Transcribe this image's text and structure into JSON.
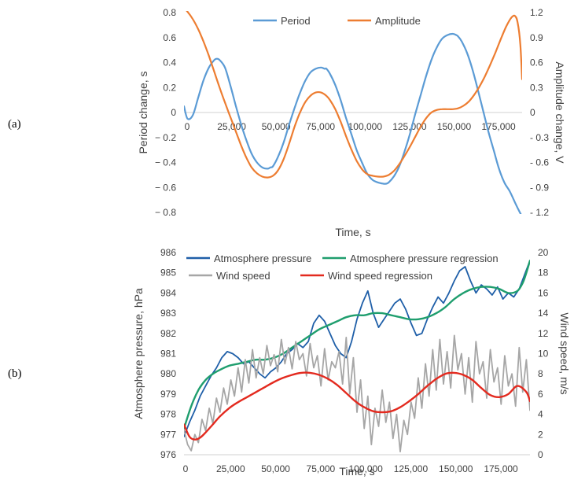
{
  "panels": {
    "a": "(a)",
    "b": "(b)"
  },
  "chart_data": [
    {
      "type": "line",
      "panel": "(a)",
      "xlabel": "Time, s",
      "ylabel_left": "Period change, s",
      "ylabel_right": "Amplitude change, V",
      "xlim": [
        0,
        190000
      ],
      "ylim_left": [
        -0.8,
        0.8
      ],
      "ylim_right": [
        -1.2,
        1.2
      ],
      "x_ticks": [
        0,
        25000,
        50000,
        75000,
        100000,
        125000,
        150000,
        175000
      ],
      "x_tick_labels": [
        "0",
        "25,000",
        "50,000",
        "75,000",
        "100,000",
        "125,000",
        "150,000",
        "175,000"
      ],
      "y_left_ticks": [
        0.8,
        0.6,
        0.4,
        0.2,
        0,
        -0.2,
        -0.4,
        -0.6,
        -0.8
      ],
      "y_left_tick_labels": [
        "0.8",
        "0.6",
        "0.4",
        "0.2",
        "0",
        "− 0.2",
        "− 0.4",
        "− 0.6",
        "− 0.8"
      ],
      "y_right_ticks": [
        1.2,
        0.9,
        0.6,
        0.3,
        0,
        -0.3,
        -0.6,
        -0.9,
        -1.2
      ],
      "y_right_tick_labels": [
        "1.2",
        "0.9",
        "0.6",
        "0.3",
        "0",
        "- 0.3",
        "- 0.6",
        "- 0.9",
        "- 1.2"
      ],
      "grid": false,
      "legend": "top-center",
      "series": [
        {
          "name": "Period",
          "axis": "left",
          "color": "#5b9bd5",
          "x": [
            0,
            2000,
            5000,
            8000,
            11000,
            14000,
            17000,
            18500,
            20000,
            23000,
            26000,
            29000,
            32000,
            35000,
            38000,
            41000,
            44000,
            47000,
            48500,
            50000,
            53000,
            56000,
            59000,
            62000,
            65000,
            68000,
            71000,
            74000,
            77000,
            79000,
            80000,
            82000,
            85000,
            88000,
            91000,
            94000,
            97000,
            100000,
            103000,
            106000,
            109000,
            112000,
            113500,
            115000,
            118000,
            121000,
            124000,
            127000,
            130000,
            133000,
            136000,
            139000,
            142000,
            145000,
            148000,
            151000,
            153000,
            154000,
            156000,
            159000,
            162000,
            165000,
            168000,
            171000,
            174000,
            177000,
            180000,
            183000,
            186000,
            188000,
            189500
          ],
          "y": [
            0.05,
            -0.05,
            -0.02,
            0.12,
            0.26,
            0.36,
            0.42,
            0.43,
            0.42,
            0.36,
            0.22,
            0.06,
            -0.09,
            -0.22,
            -0.33,
            -0.4,
            -0.44,
            -0.45,
            -0.44,
            -0.43,
            -0.35,
            -0.24,
            -0.1,
            0.03,
            0.15,
            0.25,
            0.32,
            0.35,
            0.36,
            0.35,
            0.35,
            0.31,
            0.22,
            0.1,
            -0.04,
            -0.17,
            -0.3,
            -0.4,
            -0.49,
            -0.54,
            -0.56,
            -0.57,
            -0.57,
            -0.56,
            -0.51,
            -0.43,
            -0.31,
            -0.17,
            -0.01,
            0.14,
            0.29,
            0.42,
            0.52,
            0.59,
            0.62,
            0.63,
            0.62,
            0.61,
            0.57,
            0.48,
            0.35,
            0.19,
            0.02,
            -0.15,
            -0.3,
            -0.45,
            -0.56,
            -0.63,
            -0.72,
            -0.78,
            -0.82
          ]
        },
        {
          "name": "Amplitude",
          "axis": "right",
          "color": "#ed7d31",
          "x": [
            0,
            2000,
            5000,
            8000,
            11000,
            14000,
            17000,
            20000,
            23000,
            26000,
            29000,
            32000,
            35000,
            38000,
            41000,
            44000,
            47000,
            50000,
            53000,
            56000,
            59000,
            62000,
            65000,
            68000,
            71000,
            74000,
            77000,
            80000,
            82000,
            85000,
            88000,
            91000,
            94000,
            97000,
            100000,
            103000,
            106000,
            109000,
            112000,
            115000,
            118000,
            121000,
            124000,
            127000,
            130000,
            133000,
            136000,
            139000,
            142000,
            145000,
            148000,
            151000,
            154000,
            157000,
            160000,
            163000,
            166000,
            169000,
            172000,
            175000,
            178000,
            181000,
            184000,
            186000,
            187500,
            189000,
            190000
          ],
          "y": [
            1.25,
            1.21,
            1.12,
            1.0,
            0.85,
            0.68,
            0.49,
            0.3,
            0.12,
            -0.05,
            -0.22,
            -0.39,
            -0.54,
            -0.66,
            -0.73,
            -0.77,
            -0.78,
            -0.76,
            -0.69,
            -0.56,
            -0.38,
            -0.18,
            -0.01,
            0.12,
            0.2,
            0.24,
            0.24,
            0.2,
            0.15,
            0.04,
            -0.11,
            -0.28,
            -0.44,
            -0.58,
            -0.68,
            -0.74,
            -0.76,
            -0.77,
            -0.77,
            -0.75,
            -0.7,
            -0.62,
            -0.52,
            -0.41,
            -0.29,
            -0.17,
            -0.07,
            0.0,
            0.03,
            0.04,
            0.04,
            0.04,
            0.05,
            0.08,
            0.13,
            0.21,
            0.31,
            0.43,
            0.57,
            0.72,
            0.88,
            1.03,
            1.14,
            1.16,
            1.08,
            0.82,
            0.4
          ]
        }
      ]
    },
    {
      "type": "line",
      "panel": "(b)",
      "xlabel": "Time, s",
      "ylabel_left": "Atmosphere pressure, hPa",
      "ylabel_right": "Wind speed, m/s",
      "xlim": [
        0,
        192000
      ],
      "ylim_left": [
        976,
        986
      ],
      "ylim_right": [
        0,
        20
      ],
      "x_ticks": [
        0,
        25000,
        50000,
        75000,
        100000,
        125000,
        150000,
        175000
      ],
      "x_tick_labels": [
        "0",
        "25,000",
        "50,000",
        "75,000",
        "100,000",
        "125,000",
        "150,000",
        "175,000"
      ],
      "y_left_ticks": [
        986,
        985,
        984,
        983,
        982,
        981,
        980,
        979,
        978,
        977,
        976
      ],
      "y_left_tick_labels": [
        "986",
        "985",
        "984",
        "983",
        "982",
        "981",
        "980",
        "979",
        "978",
        "977",
        "976"
      ],
      "y_right_ticks": [
        20,
        18,
        16,
        14,
        12,
        10,
        8,
        6,
        4,
        2,
        0
      ],
      "y_right_tick_labels": [
        "20",
        "18",
        "16",
        "14",
        "12",
        "10",
        "8",
        "6",
        "4",
        "2",
        "0"
      ],
      "grid": false,
      "legend": "top",
      "series": [
        {
          "name": "Atmosphere pressure",
          "axis": "left",
          "color": "#1f5fa8",
          "x": [
            0,
            3000,
            6000,
            9000,
            12000,
            15000,
            18000,
            21000,
            24000,
            27000,
            30000,
            33000,
            36000,
            39000,
            42000,
            45000,
            48000,
            51000,
            54000,
            57000,
            60000,
            63000,
            66000,
            69000,
            72000,
            75000,
            78000,
            81000,
            84000,
            87000,
            90000,
            93000,
            96000,
            99000,
            102000,
            105000,
            108000,
            111000,
            114000,
            117000,
            120000,
            123000,
            126000,
            129000,
            132000,
            135000,
            138000,
            141000,
            144000,
            147000,
            150000,
            153000,
            156000,
            159000,
            162000,
            165000,
            168000,
            171000,
            174000,
            177000,
            180000,
            183000,
            186000,
            189000,
            192000
          ],
          "y": [
            976.9,
            977.6,
            978.2,
            978.9,
            979.4,
            979.9,
            980.3,
            980.8,
            981.1,
            981.0,
            980.8,
            980.5,
            980.6,
            980.3,
            980.0,
            979.8,
            980.1,
            980.3,
            980.6,
            981.0,
            981.2,
            981.5,
            981.3,
            981.6,
            982.5,
            982.9,
            982.6,
            982.0,
            981.4,
            981.0,
            980.8,
            981.6,
            982.7,
            983.5,
            984.1,
            983.0,
            982.3,
            982.7,
            983.1,
            983.5,
            983.7,
            983.2,
            982.5,
            981.9,
            982.0,
            982.7,
            983.3,
            983.8,
            983.5,
            984.0,
            984.6,
            985.1,
            985.3,
            984.6,
            984.0,
            984.4,
            984.2,
            983.9,
            984.3,
            983.7,
            984.0,
            983.8,
            984.2,
            984.9,
            985.6
          ]
        },
        {
          "name": "Atmosphere pressure regression",
          "axis": "left",
          "color": "#1f9e6e",
          "x": [
            0,
            4000,
            8000,
            12000,
            16000,
            20000,
            25000,
            30000,
            35000,
            40000,
            45000,
            50000,
            55000,
            60000,
            65000,
            70000,
            75000,
            80000,
            85000,
            90000,
            95000,
            100000,
            105000,
            110000,
            115000,
            120000,
            125000,
            130000,
            135000,
            140000,
            145000,
            150000,
            155000,
            160000,
            165000,
            170000,
            175000,
            180000,
            185000,
            188000,
            190000,
            192000
          ],
          "y": [
            977.3,
            978.4,
            979.2,
            979.7,
            980.0,
            980.2,
            980.4,
            980.5,
            980.6,
            980.7,
            980.7,
            980.8,
            981.0,
            981.3,
            981.6,
            981.9,
            982.2,
            982.4,
            982.6,
            982.8,
            982.9,
            982.9,
            983.0,
            983.0,
            982.9,
            982.8,
            982.7,
            982.7,
            982.8,
            983.0,
            983.3,
            983.7,
            984.0,
            984.2,
            984.3,
            984.3,
            984.2,
            984.0,
            984.1,
            984.5,
            985.0,
            985.6
          ]
        },
        {
          "name": "Wind speed",
          "axis": "right",
          "color": "#a6a6a6",
          "x": [
            0,
            2000,
            4000,
            6000,
            8000,
            10000,
            12000,
            14000,
            16000,
            18000,
            20000,
            22000,
            24000,
            26000,
            28000,
            30000,
            32000,
            34000,
            36000,
            38000,
            40000,
            42000,
            44000,
            46000,
            48000,
            50000,
            52000,
            54000,
            56000,
            58000,
            60000,
            62000,
            64000,
            66000,
            68000,
            70000,
            72000,
            74000,
            76000,
            78000,
            80000,
            82000,
            84000,
            86000,
            88000,
            90000,
            92000,
            94000,
            96000,
            98000,
            100000,
            102000,
            104000,
            106000,
            108000,
            110000,
            112000,
            114000,
            116000,
            118000,
            120000,
            122000,
            124000,
            126000,
            128000,
            130000,
            132000,
            134000,
            136000,
            138000,
            140000,
            142000,
            144000,
            146000,
            148000,
            150000,
            152000,
            154000,
            156000,
            158000,
            160000,
            162000,
            164000,
            166000,
            168000,
            170000,
            172000,
            174000,
            176000,
            178000,
            180000,
            182000,
            184000,
            186000,
            188000,
            190000,
            192000
          ],
          "y": [
            2.5,
            1.0,
            0.4,
            2.0,
            1.2,
            3.5,
            2.4,
            4.6,
            3.1,
            5.6,
            4.2,
            6.6,
            5.0,
            7.4,
            5.8,
            8.6,
            6.2,
            9.4,
            7.1,
            10.4,
            7.6,
            9.6,
            8.0,
            10.8,
            8.8,
            9.9,
            8.2,
            11.4,
            9.0,
            10.6,
            8.5,
            11.2,
            9.4,
            10.0,
            7.8,
            11.0,
            8.6,
            9.8,
            6.8,
            10.5,
            7.4,
            9.2,
            8.6,
            10.2,
            7.0,
            11.6,
            6.0,
            9.6,
            4.2,
            7.4,
            2.6,
            5.8,
            1.0,
            4.6,
            2.8,
            6.4,
            3.2,
            5.2,
            1.6,
            4.0,
            0.3,
            3.4,
            2.0,
            5.2,
            3.6,
            7.6,
            4.6,
            9.0,
            5.8,
            10.4,
            6.4,
            11.4,
            7.0,
            10.2,
            6.6,
            11.8,
            8.4,
            10.0,
            6.0,
            9.6,
            5.2,
            11.2,
            8.0,
            9.2,
            5.6,
            10.4,
            7.2,
            8.6,
            5.0,
            9.8,
            6.8,
            8.0,
            4.8,
            10.6,
            6.2,
            9.4,
            4.4
          ]
        },
        {
          "name": "Wind speed regression",
          "axis": "right",
          "color": "#e32a1f",
          "x": [
            0,
            3000,
            6000,
            9000,
            12000,
            16000,
            20000,
            25000,
            30000,
            35000,
            40000,
            45000,
            50000,
            55000,
            60000,
            65000,
            70000,
            75000,
            80000,
            85000,
            90000,
            95000,
            100000,
            105000,
            110000,
            115000,
            120000,
            125000,
            130000,
            135000,
            140000,
            145000,
            150000,
            155000,
            160000,
            165000,
            170000,
            175000,
            180000,
            185000,
            190000,
            192000
          ],
          "y": [
            3.0,
            1.8,
            1.5,
            1.7,
            2.2,
            3.0,
            3.8,
            4.6,
            5.2,
            5.7,
            6.2,
            6.7,
            7.2,
            7.6,
            7.9,
            8.1,
            8.1,
            7.9,
            7.5,
            6.9,
            6.1,
            5.3,
            4.7,
            4.3,
            4.2,
            4.3,
            4.7,
            5.3,
            6.0,
            6.8,
            7.5,
            8.0,
            8.1,
            7.9,
            7.4,
            6.6,
            5.9,
            5.7,
            6.0,
            6.8,
            6.2,
            5.3
          ]
        }
      ]
    }
  ]
}
